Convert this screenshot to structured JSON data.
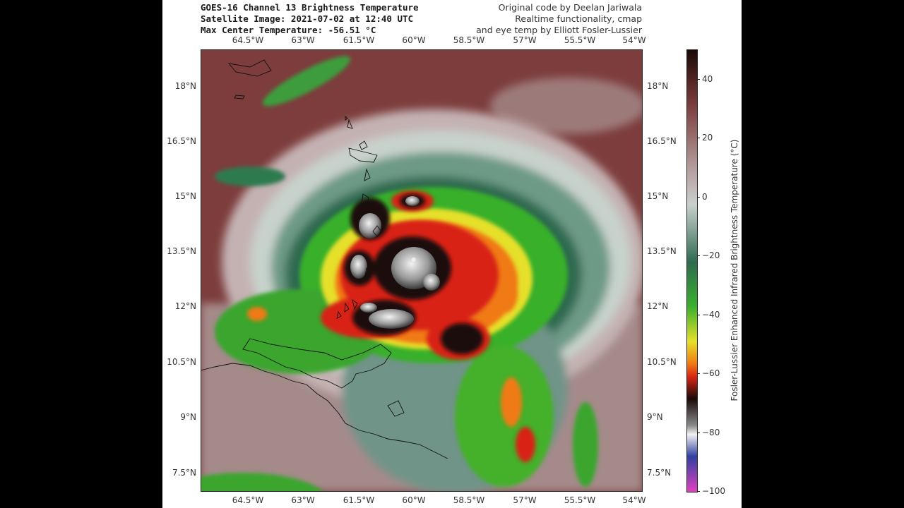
{
  "figure": {
    "title_lines": [
      "GOES-16 Channel 13 Brightness Temperature",
      "Satellite Image: 2021-07-02 at 12:40 UTC",
      "Max Center Temperature: -56.51 °C"
    ],
    "credit_lines": [
      "Original code by Deelan Jariwala",
      "Realtime functionality, cmap",
      "and eye temp by Elliott Fosler-Lussier"
    ]
  },
  "map": {
    "longitude_ticks": [
      "64.5°W",
      "63°W",
      "61.5°W",
      "60°W",
      "58.5°W",
      "57°W",
      "55.5°W",
      "54°W"
    ],
    "latitude_ticks": [
      "18°N",
      "16.5°N",
      "15°N",
      "13.5°N",
      "12°N",
      "10.5°N",
      "9°N",
      "7.5°N"
    ],
    "storm_center": {
      "lon": -59.7,
      "lat": 13.3
    }
  },
  "colorbar": {
    "label": "Fosler-Lussier Enhanced Infrared Brightness Temperature (°C)",
    "ticks": [
      "40",
      "20",
      "0",
      "−20",
      "−40",
      "−60",
      "−80",
      "−100"
    ],
    "range": [
      -100,
      50
    ],
    "colors": {
      "warm": "#7a3a3a",
      "mild": "#b9a4a4",
      "neutral": "#c8d0cc",
      "cool": "#2f6b50",
      "green": "#39b02c",
      "yellow": "#e6e02a",
      "orange": "#f07a12",
      "red": "#d82414",
      "black": "#1a0a08",
      "gray": "#8a8a8a",
      "white": "#f2f2f2",
      "blue": "#3040a0",
      "magenta": "#e040c0"
    }
  }
}
